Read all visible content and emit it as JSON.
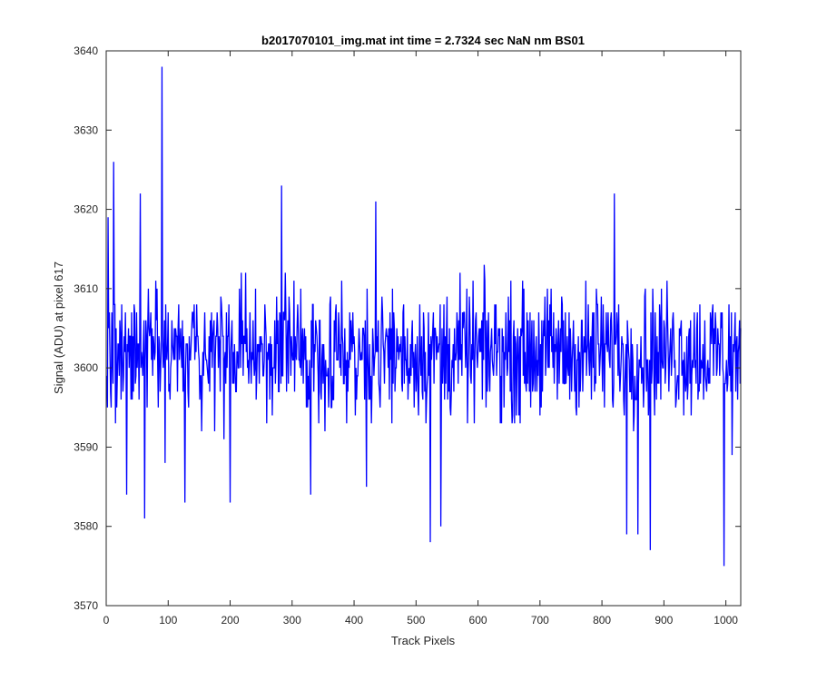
{
  "chart_data": {
    "type": "line",
    "title": "b2017070101_img.mat int time = 2.7324 sec  NaN nm BS01",
    "xlabel": "Track Pixels",
    "ylabel": "Signal (ADU) at pixel 617",
    "xlim": [
      0,
      1024
    ],
    "ylim": [
      3570,
      3640
    ],
    "xticks": [
      0,
      100,
      200,
      300,
      400,
      500,
      600,
      700,
      800,
      900,
      1000
    ],
    "yticks": [
      3570,
      3580,
      3590,
      3600,
      3610,
      3620,
      3630,
      3640
    ],
    "grid": false,
    "legend": "none",
    "series": [
      {
        "color": "#0000ff",
        "noise": {
          "mean": 3602,
          "amplitude": 7.5,
          "seed": 617
        },
        "x_start": 1,
        "x_end": 1024,
        "highlights": [
          {
            "x": 3,
            "y": 3619
          },
          {
            "x": 8,
            "y": 3595
          },
          {
            "x": 12,
            "y": 3626
          },
          {
            "x": 15,
            "y": 3593
          },
          {
            "x": 33,
            "y": 3584
          },
          {
            "x": 55,
            "y": 3622
          },
          {
            "x": 62,
            "y": 3581
          },
          {
            "x": 90,
            "y": 3638
          },
          {
            "x": 95,
            "y": 3588
          },
          {
            "x": 127,
            "y": 3583
          },
          {
            "x": 200,
            "y": 3583
          },
          {
            "x": 283,
            "y": 3623
          },
          {
            "x": 330,
            "y": 3584
          },
          {
            "x": 435,
            "y": 3621
          },
          {
            "x": 420,
            "y": 3585
          },
          {
            "x": 523,
            "y": 3578
          },
          {
            "x": 540,
            "y": 3580
          },
          {
            "x": 820,
            "y": 3622
          },
          {
            "x": 840,
            "y": 3579
          },
          {
            "x": 858,
            "y": 3579
          },
          {
            "x": 878,
            "y": 3577
          },
          {
            "x": 997,
            "y": 3575
          },
          {
            "x": 1010,
            "y": 3589
          }
        ]
      }
    ]
  }
}
